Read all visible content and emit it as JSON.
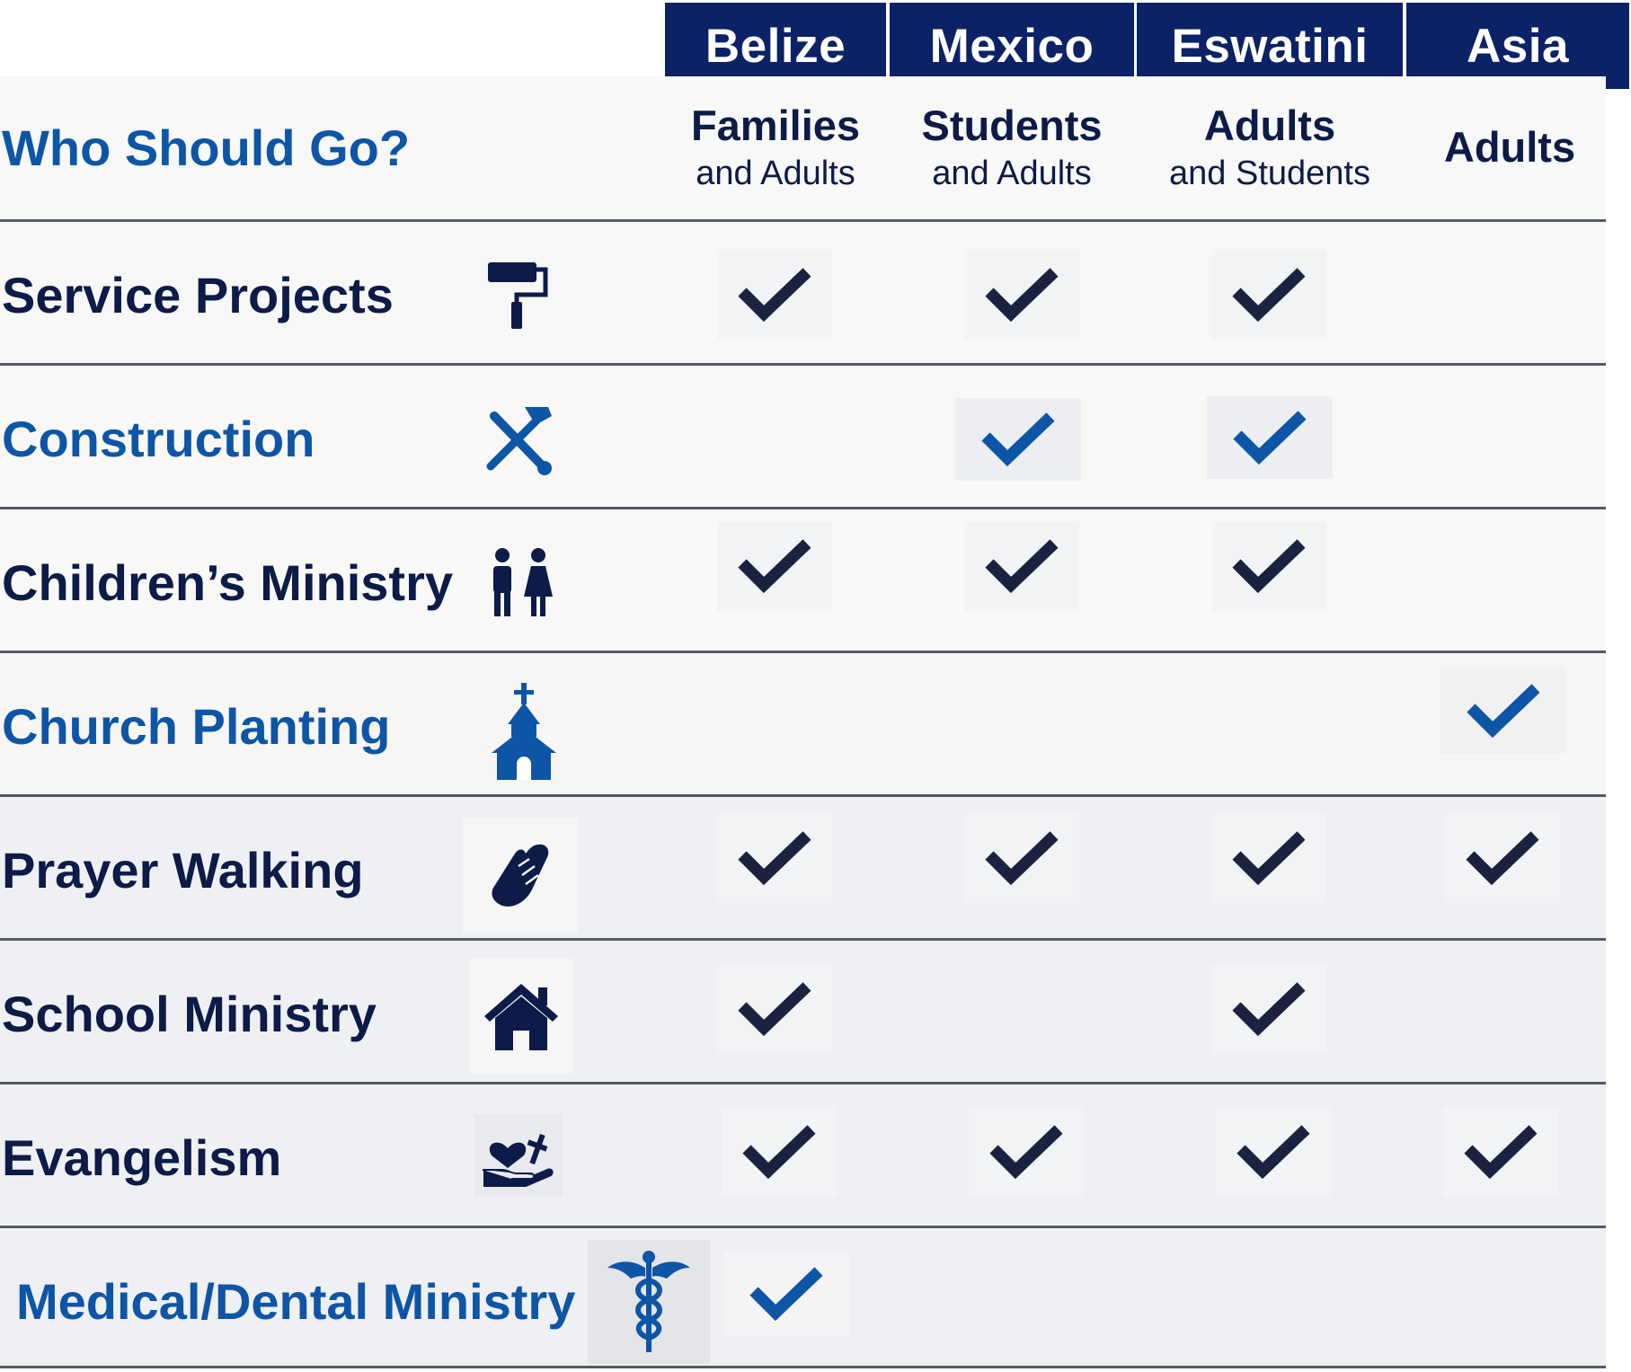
{
  "columns": [
    {
      "name": "Belize",
      "who_main": "Families",
      "who_sub": "and Adults"
    },
    {
      "name": "Mexico",
      "who_main": "Students",
      "who_sub": "and Adults"
    },
    {
      "name": "Eswatini",
      "who_main": "Adults",
      "who_sub": "and Students"
    },
    {
      "name": "Asia",
      "who_main": "Adults",
      "who_sub": ""
    }
  ],
  "header_label": "Who Should Go?",
  "colors": {
    "navy": "#0c2266",
    "dark_text": "#0c1b47",
    "blue_text": "#0d55a6",
    "check_dark": "#1a2240",
    "check_blue": "#0d55a6"
  },
  "rows": [
    {
      "label": "Service Projects",
      "icon": "paint-roller-icon",
      "style": "dark",
      "checks": [
        true,
        true,
        true,
        false
      ]
    },
    {
      "label": "Construction",
      "icon": "hammer-wrench-icon",
      "style": "blue",
      "checks": [
        false,
        true,
        true,
        false
      ]
    },
    {
      "label": "Children’s Ministry",
      "icon": "children-icon",
      "style": "dark",
      "checks": [
        true,
        true,
        true,
        false
      ]
    },
    {
      "label": "Church Planting",
      "icon": "church-icon",
      "style": "blue",
      "checks": [
        false,
        false,
        false,
        true
      ]
    },
    {
      "label": "Prayer Walking",
      "icon": "praying-hands-icon",
      "style": "dark",
      "checks": [
        true,
        true,
        true,
        true
      ]
    },
    {
      "label": "School Ministry",
      "icon": "house-icon",
      "style": "dark",
      "checks": [
        true,
        false,
        true,
        false
      ]
    },
    {
      "label": "Evangelism",
      "icon": "heart-hand-cross-icon",
      "style": "dark",
      "checks": [
        true,
        true,
        true,
        true
      ]
    },
    {
      "label": "Medical/Dental Ministry",
      "icon": "caduceus-icon",
      "style": "blue",
      "checks": [
        true,
        false,
        false,
        false
      ]
    }
  ]
}
